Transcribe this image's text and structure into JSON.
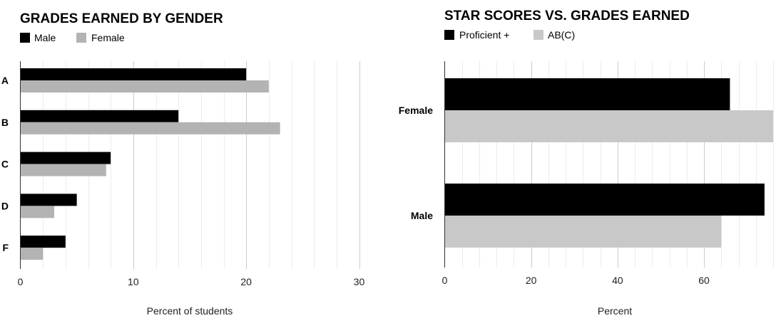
{
  "chart_data": [
    {
      "type": "bar",
      "orientation": "horizontal",
      "title": "GRADES EARNED BY GENDER",
      "categories": [
        "A",
        "B",
        "C",
        "D",
        "F"
      ],
      "series": [
        {
          "name": "Male",
          "color": "#000000",
          "values": [
            20,
            14,
            8,
            5,
            4
          ]
        },
        {
          "name": "Female",
          "color": "#b3b3b3",
          "values": [
            22,
            23,
            7.6,
            3,
            2
          ]
        }
      ],
      "xlabel": "Percent of students",
      "xlim": [
        0,
        30
      ],
      "ticks": [
        0,
        10,
        20,
        30
      ],
      "tick_labels": [
        "0",
        "10",
        "20",
        "30"
      ],
      "minor_step": 2,
      "grid": true,
      "legend_position": "top-left"
    },
    {
      "type": "bar",
      "orientation": "horizontal",
      "title": "STAR SCORES VS. GRADES EARNED",
      "categories": [
        "Female",
        "Male"
      ],
      "series": [
        {
          "name": "Proficient +",
          "color": "#000000",
          "values": [
            66,
            74
          ]
        },
        {
          "name": "AB(C)",
          "color": "#c8c8c8",
          "values": [
            76,
            64
          ]
        }
      ],
      "xlabel": "Percent",
      "xlim": [
        0,
        76
      ],
      "ticks": [
        0,
        20,
        40,
        60
      ],
      "tick_labels": [
        "0",
        "20",
        "40",
        "60"
      ],
      "minor_step": 4,
      "grid": true,
      "legend_position": "top-left"
    }
  ]
}
